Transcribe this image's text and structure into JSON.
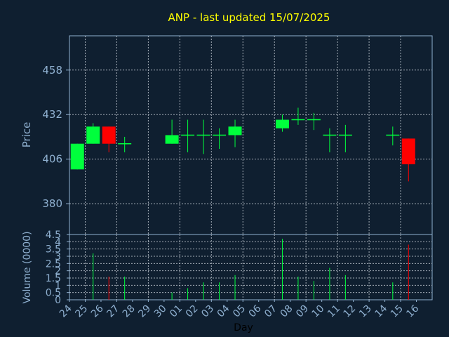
{
  "chart_data": [
    {
      "type": "candlestick",
      "title": "ANP - last updated 15/07/2025",
      "ylabel": "Price",
      "xlabel": "",
      "ylim": [
        362,
        478
      ],
      "yticks": [
        "458",
        "432",
        "406",
        "380"
      ],
      "grid": true,
      "colors": {
        "up": "#00ff3c",
        "down": "#ff0000",
        "title": "#ffff00",
        "axis_text": "#8fb0d0"
      },
      "candles": [
        {
          "day": "24",
          "open": 400,
          "close": 415,
          "high": 415,
          "low": 400
        },
        {
          "day": "25",
          "open": 415,
          "close": 425,
          "high": 427,
          "low": 415
        },
        {
          "day": "26",
          "open": 425,
          "close": 415,
          "high": 425,
          "low": 410
        },
        {
          "day": "27",
          "open": 415,
          "close": 415,
          "high": 419,
          "low": 410
        },
        {
          "day": "30",
          "open": 415,
          "close": 420,
          "high": 429,
          "low": 415
        },
        {
          "day": "01",
          "open": 420,
          "close": 420,
          "high": 429,
          "low": 410
        },
        {
          "day": "02",
          "open": 420,
          "close": 420,
          "high": 429,
          "low": 409
        },
        {
          "day": "03",
          "open": 420,
          "close": 420,
          "high": 424,
          "low": 412
        },
        {
          "day": "04",
          "open": 420,
          "close": 425,
          "high": 429,
          "low": 413
        },
        {
          "day": "07",
          "open": 424,
          "close": 429,
          "high": 432,
          "low": 422
        },
        {
          "day": "08",
          "open": 429,
          "close": 429,
          "high": 436,
          "low": 426
        },
        {
          "day": "09",
          "open": 429,
          "close": 429,
          "high": 433,
          "low": 423
        },
        {
          "day": "10",
          "open": 420,
          "close": 420,
          "high": 424,
          "low": 410
        },
        {
          "day": "11",
          "open": 420,
          "close": 420,
          "high": 426,
          "low": 410
        },
        {
          "day": "14",
          "open": 420,
          "close": 420,
          "high": 425,
          "low": 414
        },
        {
          "day": "15",
          "open": 418,
          "close": 403,
          "high": 418,
          "low": 393
        }
      ]
    },
    {
      "type": "bar",
      "ylabel": "Volume (0000)",
      "xlabel": "Day",
      "ylim": [
        0,
        4.5
      ],
      "yticks": [
        "4.5",
        "4",
        "3.5",
        "3",
        "2.5",
        "2",
        "1.5",
        "1",
        "0.5",
        "0"
      ],
      "categories": [
        "24",
        "25",
        "26",
        "27",
        "28",
        "29",
        "30",
        "01",
        "02",
        "03",
        "04",
        "05",
        "06",
        "07",
        "08",
        "09",
        "10",
        "11",
        "12",
        "13",
        "14",
        "15",
        "16"
      ],
      "volumes": [
        {
          "day": "24",
          "value": 0
        },
        {
          "day": "25",
          "value": 3.2,
          "dir": "up"
        },
        {
          "day": "26",
          "value": 1.6,
          "dir": "down"
        },
        {
          "day": "27",
          "value": 1.6,
          "dir": "up"
        },
        {
          "day": "30",
          "value": 0.5,
          "dir": "up"
        },
        {
          "day": "01",
          "value": 0.8,
          "dir": "up"
        },
        {
          "day": "02",
          "value": 1.2,
          "dir": "up"
        },
        {
          "day": "03",
          "value": 1.2,
          "dir": "up"
        },
        {
          "day": "04",
          "value": 1.7,
          "dir": "up"
        },
        {
          "day": "07",
          "value": 4.2,
          "dir": "up"
        },
        {
          "day": "08",
          "value": 1.6,
          "dir": "up"
        },
        {
          "day": "09",
          "value": 1.3,
          "dir": "up"
        },
        {
          "day": "10",
          "value": 2.2,
          "dir": "up"
        },
        {
          "day": "11",
          "value": 1.7,
          "dir": "up"
        },
        {
          "day": "14",
          "value": 1.2,
          "dir": "up"
        },
        {
          "day": "15",
          "value": 3.8,
          "dir": "down"
        }
      ]
    }
  ]
}
